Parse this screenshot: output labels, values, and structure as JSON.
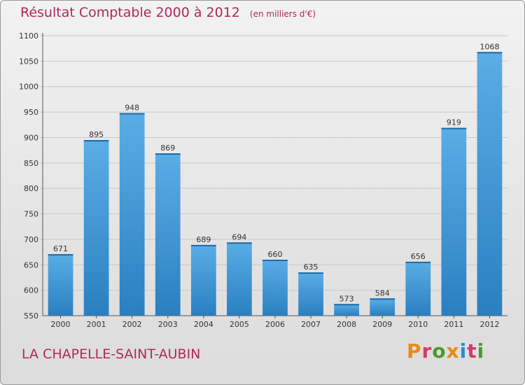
{
  "chart_data": {
    "type": "bar",
    "title": "Résultat Comptable 2000 à 2012",
    "unit_note": "(en milliers d'€)",
    "categories": [
      "2000",
      "2001",
      "2002",
      "2003",
      "2004",
      "2005",
      "2006",
      "2007",
      "2008",
      "2009",
      "2010",
      "2011",
      "2012"
    ],
    "values": [
      671,
      895,
      948,
      869,
      689,
      694,
      660,
      635,
      573,
      584,
      656,
      919,
      1068
    ],
    "ylim": [
      550,
      1100
    ],
    "yticks": [
      550,
      600,
      650,
      700,
      750,
      800,
      850,
      900,
      950,
      1000,
      1050,
      1100
    ],
    "xlabel": "",
    "ylabel": "",
    "grid": true,
    "legend": "none",
    "bar_color_top": "#5aaee6",
    "bar_color_bottom": "#2a7fc0"
  },
  "footer": {
    "commune": "LA CHAPELLE-SAINT-AUBIN",
    "logo_text": "Proxiti"
  },
  "colors": {
    "title": "#b0285a",
    "logo_letters": [
      "#e88a1a",
      "#d63a6a",
      "#4a9a2a",
      "#e88a1a",
      "#2a8ad0",
      "#d63a6a",
      "#4a9a2a"
    ]
  }
}
